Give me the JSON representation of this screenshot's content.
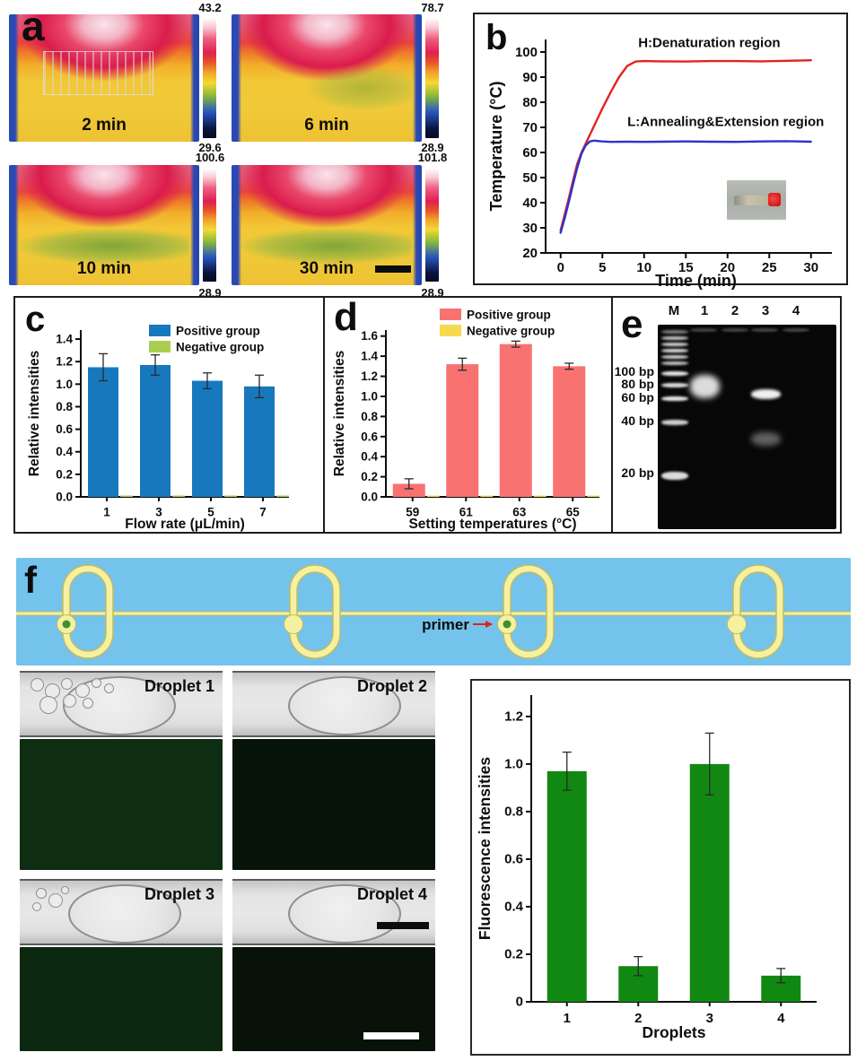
{
  "panels": {
    "a": "a",
    "b": "b",
    "c": "c",
    "d": "d",
    "e": "e",
    "f": "f"
  },
  "panel_a": {
    "images": [
      {
        "time_label": "2 min",
        "scale_max": "43.2",
        "scale_min": "29.6"
      },
      {
        "time_label": "6 min",
        "scale_max": "78.7",
        "scale_min": "28.9"
      },
      {
        "time_label": "10 min",
        "scale_max": "100.6",
        "scale_min": "28.9"
      },
      {
        "time_label": "30 min",
        "scale_max": "101.8",
        "scale_min": "28.9"
      }
    ]
  },
  "panel_e": {
    "lane_labels": [
      "M",
      "1",
      "2",
      "3",
      "4"
    ],
    "bp_labels": [
      "100 bp",
      "80 bp",
      "60 bp",
      "40 bp",
      "20 bp"
    ]
  },
  "panel_f": {
    "primer_label": "primer",
    "diagram_colors": {
      "background": "#74c3ec",
      "channel": "#f5f1a0",
      "channel_edge": "#c2bb60",
      "primer_dot": "#3c9130",
      "arrow": "#e02020"
    },
    "droplets": [
      {
        "label": "Droplet 1",
        "fluor_color": "#0e2d12"
      },
      {
        "label": "Droplet 2",
        "fluor_color": "#071409"
      },
      {
        "label": "Droplet 3",
        "fluor_color": "#0c2810"
      },
      {
        "label": "Droplet 4",
        "fluor_color": "#081208"
      }
    ]
  },
  "chart_data": [
    {
      "id": "b",
      "type": "line",
      "xlabel": "Time (min)",
      "ylabel": "Temperature (°C)",
      "xlim": [
        -1.8,
        32.5
      ],
      "ylim": [
        20,
        105
      ],
      "grid": false,
      "xticks": [
        0,
        5,
        10,
        15,
        20,
        25,
        30
      ],
      "xtick_labels": [
        "0",
        "5",
        "10",
        "15",
        "20",
        "25",
        "30"
      ],
      "yticks": [
        20,
        30,
        40,
        50,
        60,
        70,
        80,
        90,
        100
      ],
      "ytick_labels": [
        "20",
        "30",
        "40",
        "50",
        "60",
        "70",
        "80",
        "90",
        "100"
      ],
      "series": [
        {
          "name": "H:Denaturation region",
          "color": "#e3231f",
          "x": [
            0,
            0.5,
            1,
            1.5,
            2,
            2.5,
            3,
            3.5,
            4,
            5,
            6,
            7,
            8,
            9,
            10,
            12,
            15,
            18,
            21,
            24,
            27,
            30
          ],
          "y": [
            29,
            35.5,
            42,
            49,
            55.5,
            60,
            63.5,
            67,
            70.5,
            77.5,
            84,
            90,
            94.5,
            96.2,
            96.4,
            96.3,
            96.2,
            96.4,
            96.4,
            96.3,
            96.5,
            96.7
          ]
        },
        {
          "name": "L:Annealing&Extension region",
          "color": "#2d33cd",
          "x": [
            0,
            0.5,
            1,
            1.5,
            2,
            2.5,
            3,
            3.5,
            4,
            5,
            6,
            8,
            10,
            12,
            15,
            18,
            21,
            24,
            27,
            30
          ],
          "y": [
            28,
            34,
            40.5,
            47.5,
            54,
            59.5,
            62.8,
            64.4,
            64.7,
            64.4,
            64.2,
            64.3,
            64.2,
            64.3,
            64.4,
            64.3,
            64.2,
            64.4,
            64.5,
            64.3
          ]
        }
      ],
      "annotations": [
        {
          "text": "H:Denaturation region",
          "x": 9.3,
          "y": 102
        },
        {
          "text": "L:Annealing&Extension region",
          "x": 8.0,
          "y": 70.5
        }
      ]
    },
    {
      "id": "c",
      "type": "bar",
      "categories": [
        "1",
        "3",
        "5",
        "7"
      ],
      "series": [
        {
          "name": "Positive group",
          "color": "#1878be",
          "values": [
            1.15,
            1.17,
            1.03,
            0.98
          ],
          "errors": [
            0.12,
            0.09,
            0.07,
            0.1
          ]
        },
        {
          "name": "Negative group",
          "color": "#aace52",
          "values": [
            0.012,
            0.012,
            0.012,
            0.012
          ],
          "errors": [
            0,
            0,
            0,
            0
          ]
        }
      ],
      "xlabel": "Flow rate (μL/min)",
      "ylabel": "Relative intensities",
      "ylim": [
        0,
        1.48
      ],
      "yticks": [
        0,
        0.2,
        0.4,
        0.6,
        0.8,
        1.0,
        1.2,
        1.4
      ],
      "ytick_labels": [
        "0.0",
        "0.2",
        "0.4",
        "0.6",
        "0.8",
        "1.0",
        "1.2",
        "1.4"
      ],
      "legend": true,
      "legend_position": "top-center",
      "grid": false
    },
    {
      "id": "d",
      "type": "bar",
      "categories": [
        "59",
        "61",
        "63",
        "65"
      ],
      "series": [
        {
          "name": "Positive group",
          "color": "#f87272",
          "values": [
            0.13,
            1.32,
            1.52,
            1.3
          ],
          "errors": [
            0.05,
            0.06,
            0.03,
            0.03
          ]
        },
        {
          "name": "Negative group",
          "color": "#f5d94e",
          "values": [
            0.013,
            0.013,
            0.013,
            0.013
          ],
          "errors": [
            0,
            0,
            0,
            0
          ]
        }
      ],
      "xlabel": "Setting temperatures (°C)",
      "ylabel": "Relative intensities",
      "ylim": [
        0,
        1.66
      ],
      "yticks": [
        0,
        0.2,
        0.4,
        0.6,
        0.8,
        1.0,
        1.2,
        1.4,
        1.6
      ],
      "ytick_labels": [
        "0.0",
        "0.2",
        "0.4",
        "0.6",
        "0.8",
        "1.0",
        "1.2",
        "1.4",
        "1.6"
      ],
      "legend": true,
      "legend_position": "top-center",
      "grid": false
    },
    {
      "id": "f",
      "type": "bar",
      "categories": [
        "1",
        "2",
        "3",
        "4"
      ],
      "series": [
        {
          "name": "Fluorescence",
          "color": "#118811",
          "values": [
            0.97,
            0.15,
            1.0,
            0.11
          ],
          "errors": [
            0.08,
            0.04,
            0.13,
            0.03
          ]
        }
      ],
      "xlabel": "Droplets",
      "ylabel": "Fluorescence intensities",
      "ylim": [
        0,
        1.29
      ],
      "yticks": [
        0,
        0.2,
        0.4,
        0.6,
        0.8,
        1.0,
        1.2
      ],
      "ytick_labels": [
        "0",
        "0.2",
        "0.4",
        "0.6",
        "0.8",
        "1.0",
        "1.2"
      ],
      "legend": false,
      "grid": false
    }
  ]
}
